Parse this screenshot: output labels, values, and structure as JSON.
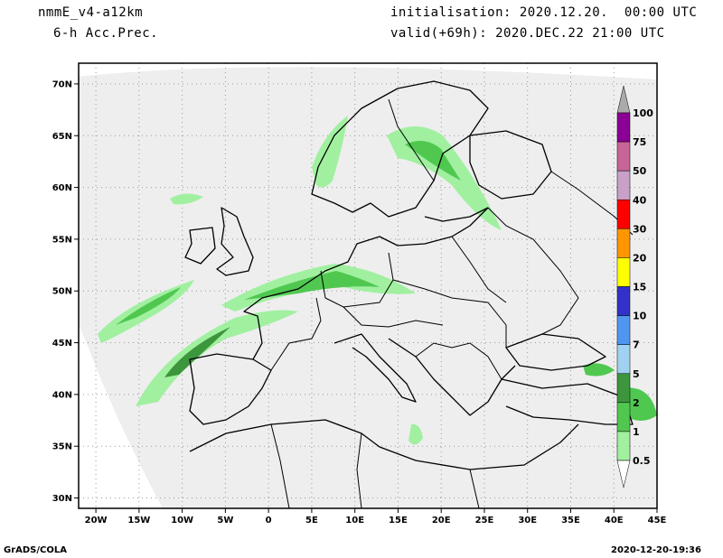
{
  "header": {
    "model": "nmmE_v4-a12km",
    "field": "6-h Acc.Prec.",
    "init": "initialisation: 2020.12.20.  00:00 UTC",
    "valid": "valid(+69h): 2020.DEC.22 21:00 UTC"
  },
  "footer": {
    "left": "GrADS/COLA",
    "right": "2020-12-20-19:36"
  },
  "axes": {
    "lon_labels": [
      "20W",
      "15W",
      "10W",
      "5W",
      "0",
      "5E",
      "10E",
      "15E",
      "20E",
      "25E",
      "30E",
      "35E",
      "40E",
      "45E"
    ],
    "lat_labels": [
      "70N",
      "65N",
      "60N",
      "55N",
      "50N",
      "45N",
      "40N",
      "35N",
      "30N"
    ],
    "lon_range": [
      -22,
      45
    ],
    "lat_range": [
      29,
      72
    ]
  },
  "colorbar": {
    "labels": [
      "100",
      "75",
      "50",
      "40",
      "30",
      "20",
      "15",
      "10",
      "7",
      "5",
      "2",
      "1",
      "0.5"
    ],
    "colors": [
      "#aaaaaa",
      "#8c0096",
      "#c86496",
      "#c8a0c8",
      "#ff0000",
      "#ff9600",
      "#ffff00",
      "#3232c8",
      "#5096f0",
      "#a0d2f0",
      "#3c963c",
      "#50c850",
      "#a0f0a0"
    ]
  },
  "map": {
    "land_color": "#eeeeee",
    "precip_light": "#a0f0a0",
    "precip_mid": "#50c850",
    "precip_dark": "#3c963c"
  }
}
